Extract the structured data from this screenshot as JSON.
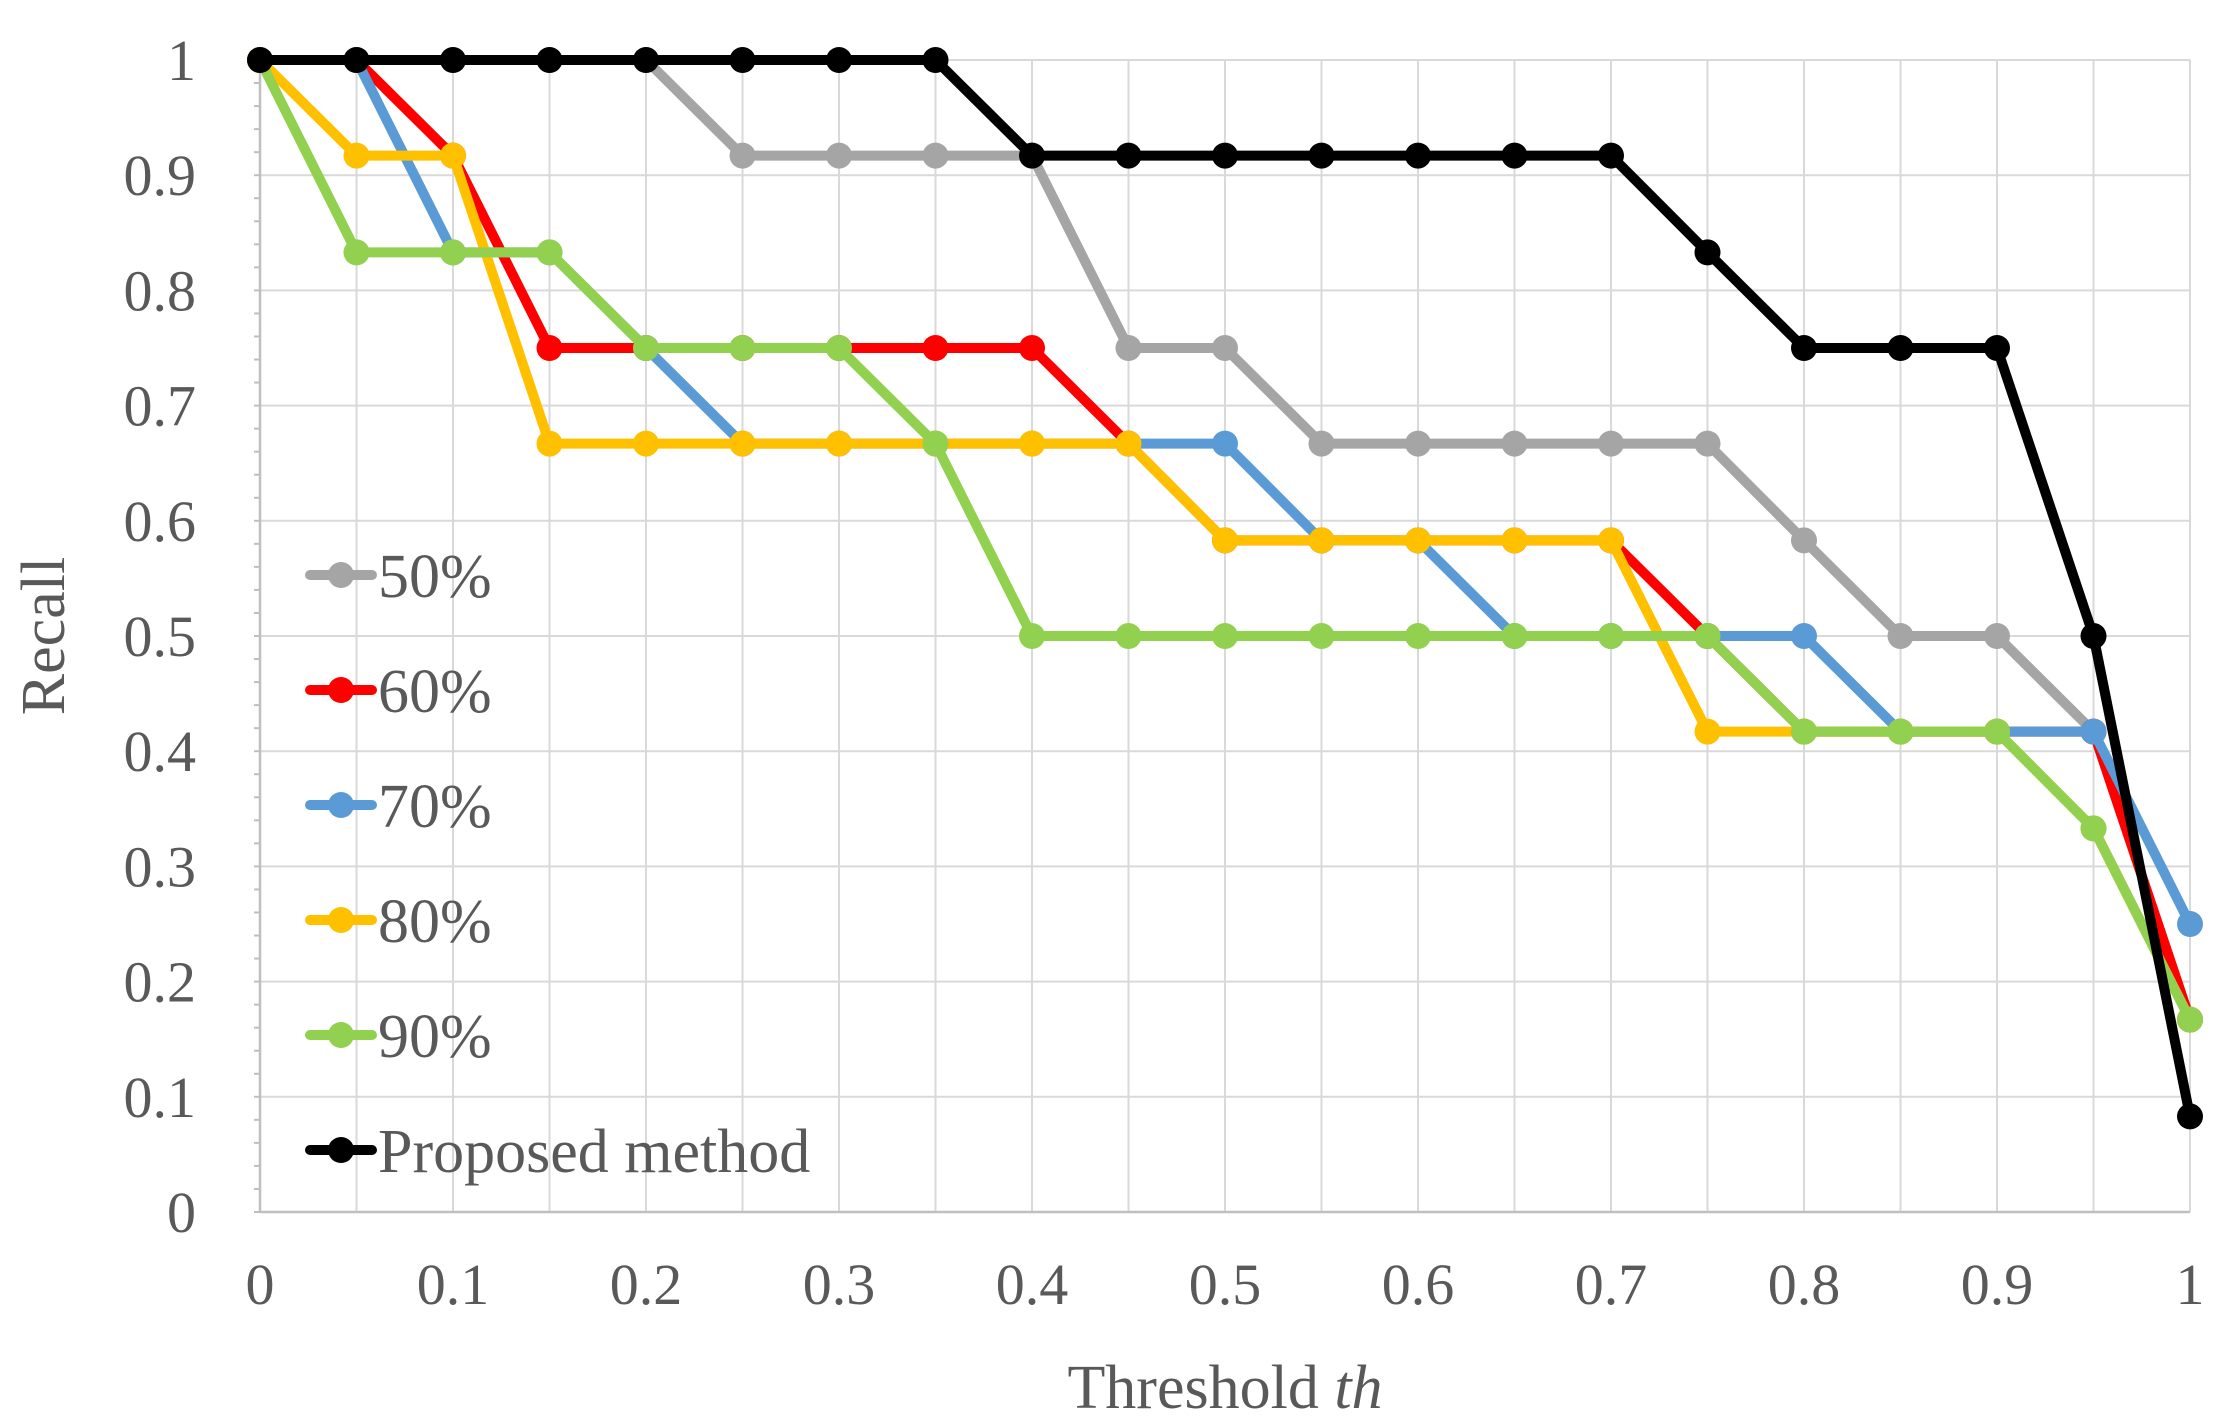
{
  "chart_data": {
    "type": "line",
    "title": "",
    "xlabel": "Threshold ",
    "xlabel_italic": "th",
    "ylabel": "Recall",
    "xlim": [
      0,
      1
    ],
    "ylim": [
      0,
      1
    ],
    "grid": true,
    "legend_position": "left",
    "x": [
      0,
      0.05,
      0.1,
      0.15,
      0.2,
      0.25,
      0.3,
      0.35,
      0.4,
      0.45,
      0.5,
      0.55,
      0.6,
      0.65,
      0.7,
      0.75,
      0.8,
      0.85,
      0.9,
      0.95,
      1
    ],
    "x_ticks": [
      "0",
      "0.1",
      "0.2",
      "0.3",
      "0.4",
      "0.5",
      "0.6",
      "0.7",
      "0.8",
      "0.9",
      "1"
    ],
    "y_ticks": [
      "0",
      "0.1",
      "0.2",
      "0.3",
      "0.4",
      "0.5",
      "0.6",
      "0.7",
      "0.8",
      "0.9",
      "1"
    ],
    "series": [
      {
        "name": "50%",
        "color": "#a5a5a5",
        "values": [
          1,
          1,
          1,
          1,
          1,
          0.917,
          0.917,
          0.917,
          0.917,
          0.75,
          0.75,
          0.667,
          0.667,
          0.667,
          0.667,
          0.667,
          0.583,
          0.5,
          0.5,
          0.417,
          0.167
        ]
      },
      {
        "name": "60%",
        "color": "#ff0000",
        "values": [
          1,
          1,
          0.917,
          0.75,
          0.75,
          0.75,
          0.75,
          0.75,
          0.75,
          0.667,
          0.583,
          0.583,
          0.583,
          0.583,
          0.583,
          0.5,
          0.417,
          0.417,
          0.417,
          0.417,
          0.167
        ]
      },
      {
        "name": "70%",
        "color": "#5b9bd5",
        "values": [
          1,
          1,
          0.833,
          0.833,
          0.75,
          0.667,
          0.667,
          0.667,
          0.667,
          0.667,
          0.667,
          0.583,
          0.583,
          0.5,
          0.5,
          0.5,
          0.5,
          0.417,
          0.417,
          0.417,
          0.25
        ]
      },
      {
        "name": "80%",
        "color": "#ffc000",
        "values": [
          1,
          0.917,
          0.917,
          0.667,
          0.667,
          0.667,
          0.667,
          0.667,
          0.667,
          0.667,
          0.583,
          0.583,
          0.583,
          0.583,
          0.583,
          0.417,
          0.417,
          0.417,
          0.417,
          0.333,
          0.167
        ]
      },
      {
        "name": "90%",
        "color": "#92d050",
        "values": [
          1,
          0.833,
          0.833,
          0.833,
          0.75,
          0.75,
          0.75,
          0.667,
          0.5,
          0.5,
          0.5,
          0.5,
          0.5,
          0.5,
          0.5,
          0.5,
          0.417,
          0.417,
          0.417,
          0.333,
          0.167
        ]
      },
      {
        "name": "Proposed method",
        "color": "#000000",
        "values": [
          1,
          1,
          1,
          1,
          1,
          1,
          1,
          1,
          0.917,
          0.917,
          0.917,
          0.917,
          0.917,
          0.917,
          0.917,
          0.833,
          0.75,
          0.75,
          0.75,
          0.5,
          0.083
        ]
      }
    ]
  }
}
